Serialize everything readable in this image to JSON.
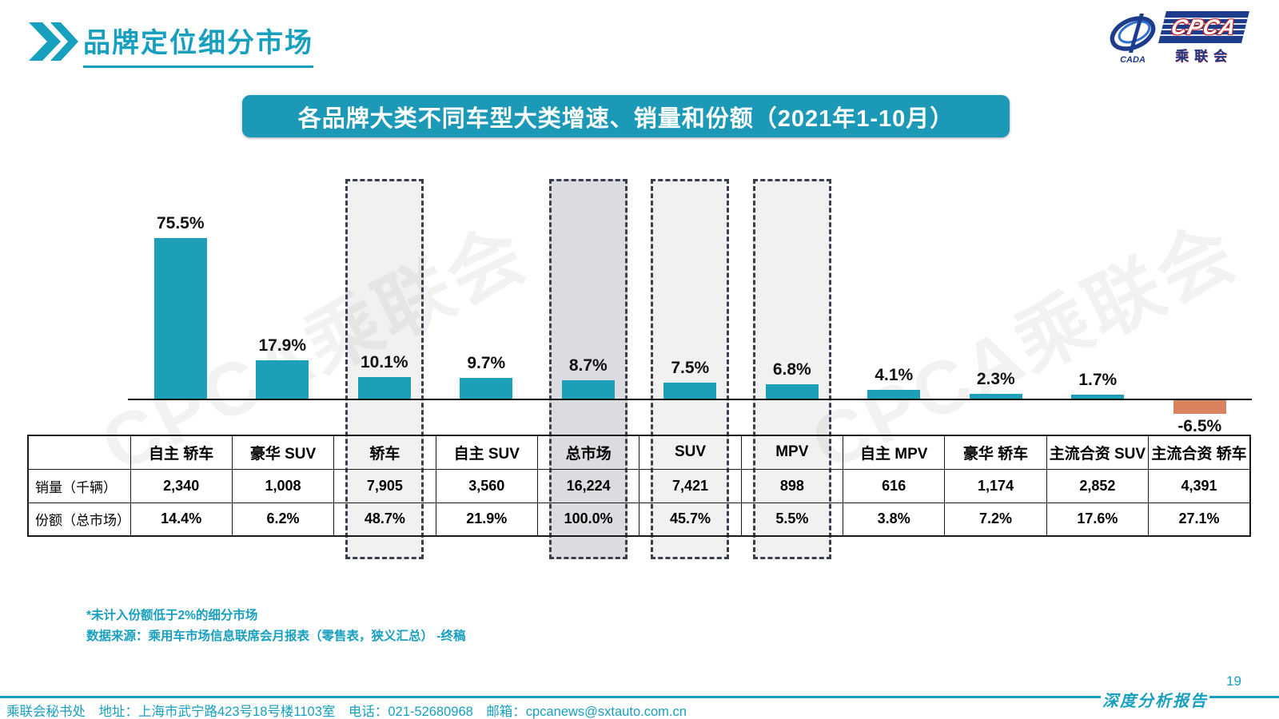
{
  "header": {
    "title": "品牌定位细分市场"
  },
  "logo": {
    "main": "CPCA",
    "sub": "乘联会",
    "oval_text": "CADA"
  },
  "banner": {
    "title": "各品牌大类不同车型大类增速、销量和份额（2021年1-10月）"
  },
  "watermark": "CPCA乘联会",
  "chart_data": {
    "type": "bar",
    "title": "各品牌大类不同车型大类增速、销量和份额（2021年1-10月）",
    "categories": [
      "自主 轿车",
      "豪华 SUV",
      "轿车",
      "自主 SUV",
      "总市场",
      "SUV",
      "MPV",
      "自主 MPV",
      "豪华 轿车",
      "主流合资 SUV",
      "主流合资 轿车"
    ],
    "series": [
      {
        "name": "增速",
        "unit": "%",
        "values": [
          75.5,
          17.9,
          10.1,
          9.7,
          8.7,
          7.5,
          6.8,
          4.1,
          2.3,
          1.7,
          -6.5
        ]
      },
      {
        "name": "销量（千辆）",
        "values": [
          "2,340",
          "1,008",
          "7,905",
          "3,560",
          "16,224",
          "7,421",
          "898",
          "616",
          "1,174",
          "2,852",
          "4,391"
        ]
      },
      {
        "name": "份额（总市场）",
        "values": [
          "14.4%",
          "6.2%",
          "48.7%",
          "21.9%",
          "100.0%",
          "45.7%",
          "5.5%",
          "3.8%",
          "7.2%",
          "17.6%",
          "27.1%"
        ]
      }
    ],
    "highlight_boxes": [
      {
        "category": "轿车",
        "fill": "light"
      },
      {
        "category": "总市场",
        "fill": "dark"
      },
      {
        "category": "SUV",
        "fill": "light"
      },
      {
        "category": "MPV",
        "fill": "light"
      }
    ],
    "ylim": [
      -10,
      80
    ],
    "grid": false,
    "legend": "none"
  },
  "colors": {
    "accent": "#179FBF",
    "banner": "#1B99B6",
    "bar": "#1D9EB9",
    "negative_bar": "#D9835E",
    "logo_navy": "#1E3C8C",
    "highlight_fill_light": "rgba(95,95,115,0.09)",
    "highlight_fill_dark": "rgba(75,75,100,0.20)"
  },
  "table": {
    "row_labels": [
      "销量（千辆）",
      "份额（总市场）"
    ]
  },
  "notes": [
    "*未计入份额低于2%的细分市场",
    "数据来源：乘用车市场信息联席会月报表（零售表，狭义汇总） -终稿"
  ],
  "footer": {
    "contact": "乘联会秘书处　地址：上海市武宁路423号18号楼1103室　电话：021-52680968　邮箱：cpcanews@sxtauto.com.cn",
    "report_label": "深度分析报告",
    "page_number": "19"
  }
}
